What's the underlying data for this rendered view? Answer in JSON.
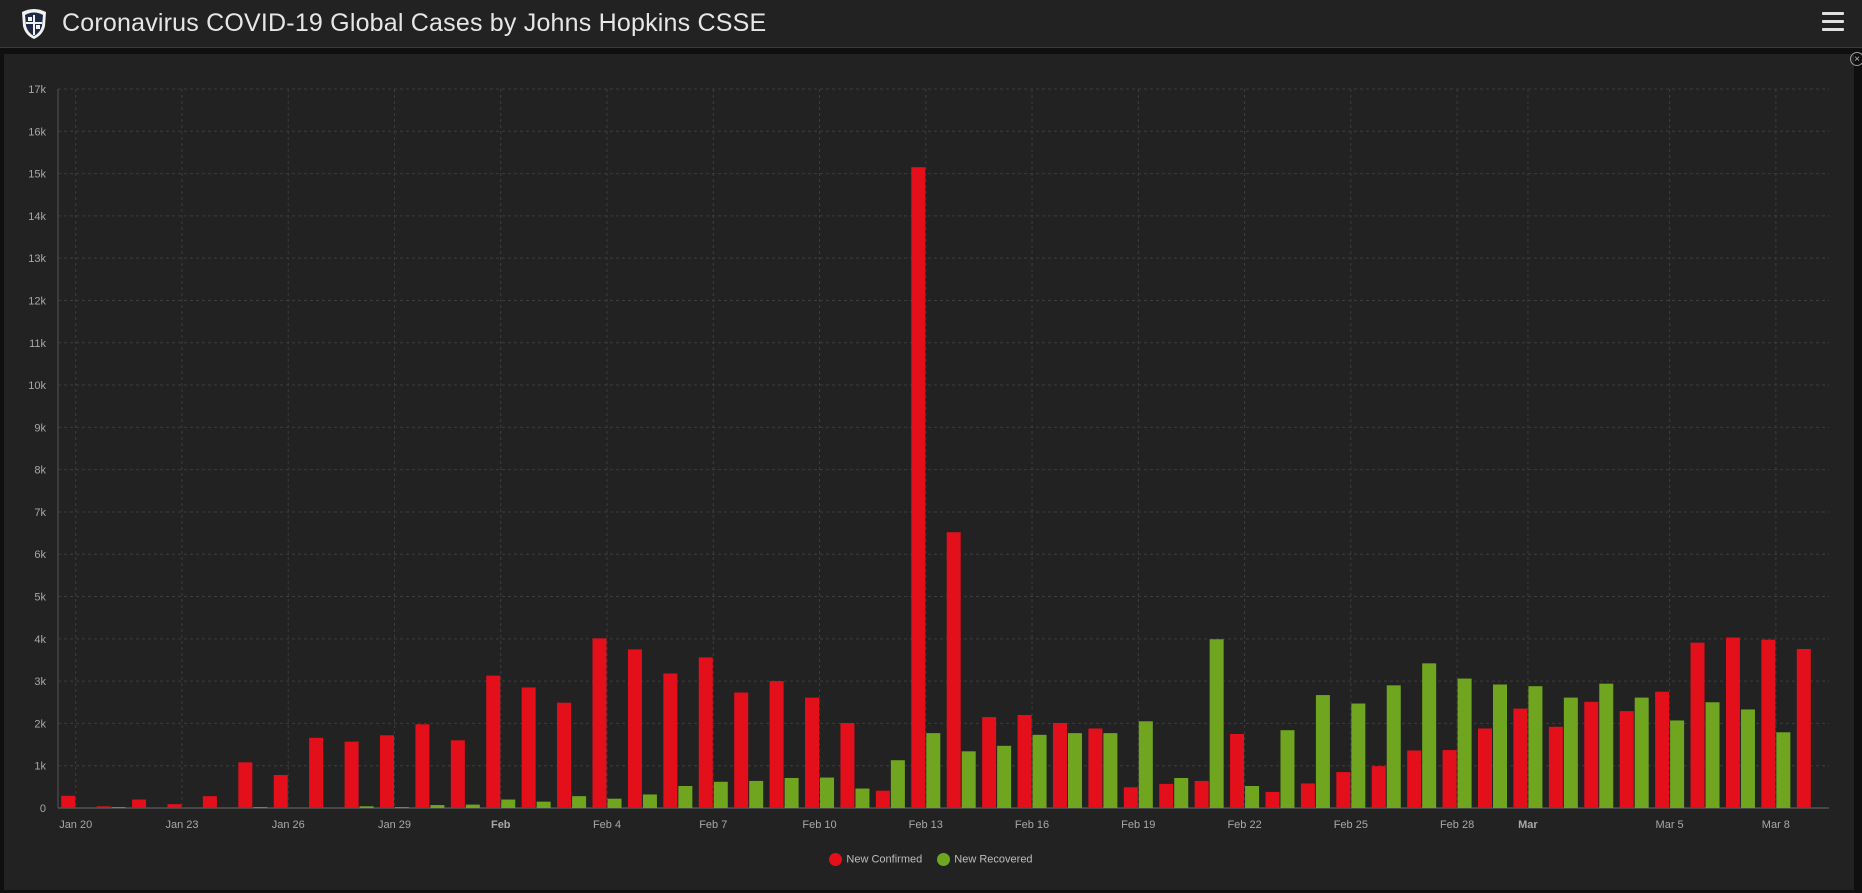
{
  "header": {
    "title": "Coronavirus COVID-19 Global Cases by Johns Hopkins CSSE",
    "logo_icon": "university-shield-icon",
    "menu_icon": "hamburger-menu-icon"
  },
  "colors": {
    "confirmed": "#e3101b",
    "recovered": "#70a61f",
    "panel": "#222222",
    "grid": "#3c3c3c",
    "axis_text": "#a8a8a8"
  },
  "chart_data": {
    "type": "bar",
    "title": "",
    "xlabel": "",
    "ylabel": "",
    "ylim": [
      0,
      17000
    ],
    "yticks": [
      "0",
      "1k",
      "2k",
      "3k",
      "4k",
      "5k",
      "6k",
      "7k",
      "8k",
      "9k",
      "10k",
      "11k",
      "12k",
      "13k",
      "14k",
      "15k",
      "16k",
      "17k"
    ],
    "grid": true,
    "legend_position": "bottom-center",
    "categories": [
      "Jan 20",
      "Jan 21",
      "Jan 22",
      "Jan 23",
      "Jan 24",
      "Jan 25",
      "Jan 26",
      "Jan 27",
      "Jan 28",
      "Jan 29",
      "Jan 30",
      "Jan 31",
      "Feb 1",
      "Feb 2",
      "Feb 3",
      "Feb 4",
      "Feb 5",
      "Feb 6",
      "Feb 7",
      "Feb 8",
      "Feb 9",
      "Feb 10",
      "Feb 11",
      "Feb 12",
      "Feb 13",
      "Feb 14",
      "Feb 15",
      "Feb 16",
      "Feb 17",
      "Feb 18",
      "Feb 19",
      "Feb 20",
      "Feb 21",
      "Feb 22",
      "Feb 23",
      "Feb 24",
      "Feb 25",
      "Feb 26",
      "Feb 27",
      "Feb 28",
      "Feb 29",
      "Mar 1",
      "Mar 2",
      "Mar 3",
      "Mar 4",
      "Mar 5",
      "Mar 6",
      "Mar 7",
      "Mar 8",
      "Mar 9"
    ],
    "x_tick_labels": [
      {
        "label": "Jan 20",
        "index": 0,
        "bold": false
      },
      {
        "label": "Jan 23",
        "index": 3,
        "bold": false
      },
      {
        "label": "Jan 26",
        "index": 6,
        "bold": false
      },
      {
        "label": "Jan 29",
        "index": 9,
        "bold": false
      },
      {
        "label": "Feb",
        "index": 12,
        "bold": true
      },
      {
        "label": "Feb 4",
        "index": 15,
        "bold": false
      },
      {
        "label": "Feb 7",
        "index": 18,
        "bold": false
      },
      {
        "label": "Feb 10",
        "index": 21,
        "bold": false
      },
      {
        "label": "Feb 13",
        "index": 24,
        "bold": false
      },
      {
        "label": "Feb 16",
        "index": 27,
        "bold": false
      },
      {
        "label": "Feb 19",
        "index": 30,
        "bold": false
      },
      {
        "label": "Feb 22",
        "index": 33,
        "bold": false
      },
      {
        "label": "Feb 25",
        "index": 36,
        "bold": false
      },
      {
        "label": "Feb 28",
        "index": 39,
        "bold": false
      },
      {
        "label": "Mar",
        "index": 41,
        "bold": true
      },
      {
        "label": "Mar 5",
        "index": 45,
        "bold": false
      },
      {
        "label": "Mar 8",
        "index": 48,
        "bold": false
      }
    ],
    "series": [
      {
        "name": "New Confirmed",
        "color": "#e3101b",
        "values": [
          290,
          40,
          200,
          90,
          280,
          1080,
          780,
          1660,
          1570,
          1720,
          1980,
          1600,
          3130,
          2850,
          2490,
          4010,
          3750,
          3180,
          3560,
          2730,
          3000,
          2610,
          2010,
          410,
          15150,
          6520,
          2150,
          2200,
          2010,
          1880,
          490,
          570,
          640,
          1750,
          380,
          580,
          850,
          990,
          1360,
          1370,
          1880,
          2350,
          1920,
          2510,
          2290,
          2750,
          3910,
          4030,
          3980,
          3760
        ]
      },
      {
        "name": "New Recovered",
        "color": "#70a61f",
        "values": [
          0,
          20,
          0,
          0,
          0,
          20,
          0,
          0,
          40,
          20,
          70,
          80,
          200,
          150,
          280,
          220,
          320,
          520,
          620,
          640,
          710,
          720,
          460,
          1130,
          1770,
          1340,
          1470,
          1730,
          1770,
          1770,
          2050,
          710,
          3990,
          520,
          1840,
          2670,
          2470,
          2900,
          3420,
          3060,
          2920,
          2880,
          2610,
          2940,
          2610,
          2070,
          2500,
          2330,
          1790,
          0
        ]
      }
    ]
  }
}
